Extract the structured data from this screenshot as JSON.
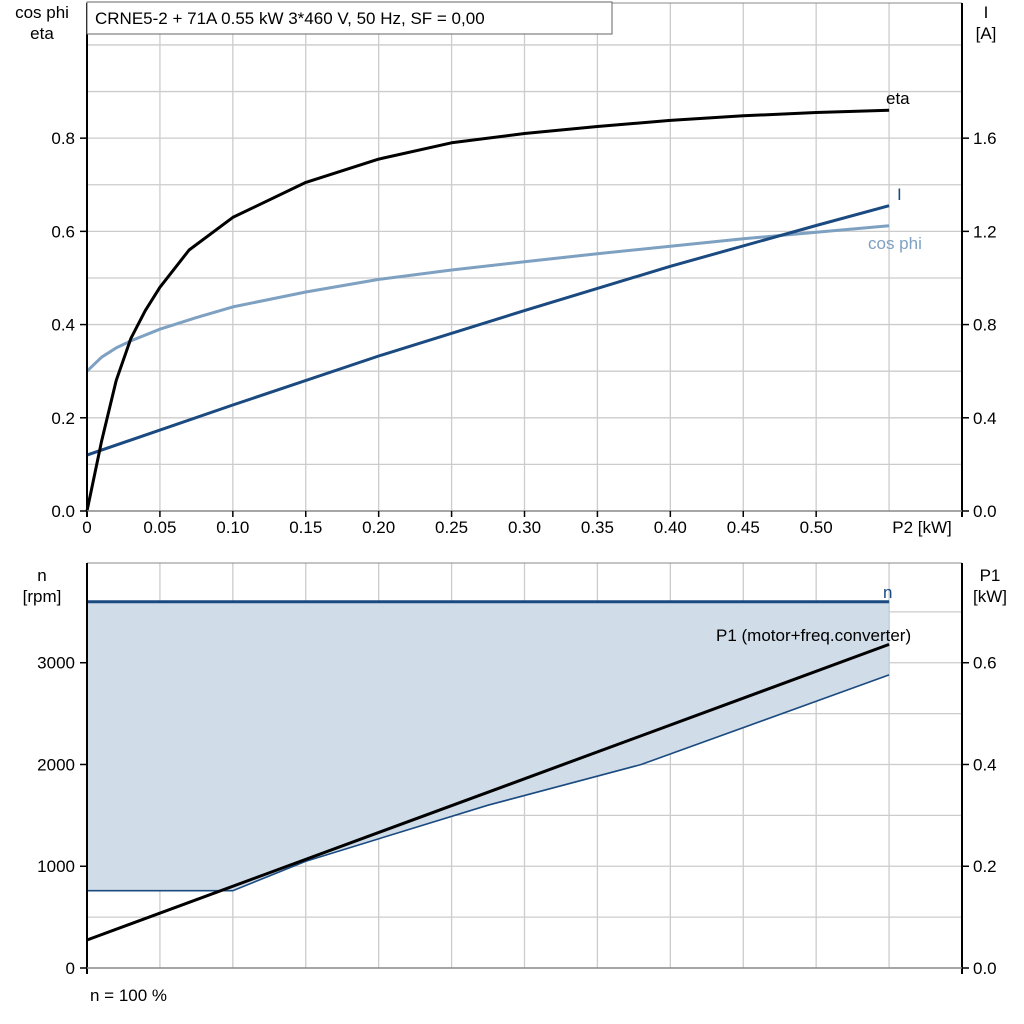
{
  "title": "CRNE5-2 + 71A   0.55 kW   3*460 V, 50 Hz, SF = 0,00",
  "footnote": "n = 100 %",
  "colors": {
    "eta": "#000000",
    "I": "#1a4a80",
    "cos_phi": "#7ea1c2",
    "n": "#1a4a80",
    "P1": "#000000",
    "fill": "#d0dce8",
    "grid": "#cccccc"
  },
  "chart_data": [
    {
      "type": "line",
      "ylabel_left": [
        "cos phi",
        "eta"
      ],
      "ylabel_right": [
        "I",
        "[A]"
      ],
      "xlabel": "P2 [kW]",
      "xlim": [
        0,
        0.6
      ],
      "ylim_left": [
        0,
        1.09
      ],
      "ylim_right": [
        0,
        2.18
      ],
      "x_ticks": [
        "0",
        "0.05",
        "0.10",
        "0.15",
        "0.20",
        "0.25",
        "0.30",
        "0.35",
        "0.40",
        "0.45",
        "0.50"
      ],
      "y_ticks_left": [
        "0.0",
        "0.2",
        "0.4",
        "0.6",
        "0.8"
      ],
      "y_ticks_right": [
        "0.0",
        "0.4",
        "0.8",
        "1.2",
        "1.6"
      ],
      "grid": true,
      "series": [
        {
          "name": "eta",
          "axis": "left",
          "x": [
            0,
            0.01,
            0.02,
            0.03,
            0.04,
            0.05,
            0.07,
            0.1,
            0.15,
            0.2,
            0.25,
            0.3,
            0.35,
            0.4,
            0.45,
            0.5,
            0.55
          ],
          "y": [
            0,
            0.15,
            0.28,
            0.37,
            0.43,
            0.48,
            0.56,
            0.63,
            0.705,
            0.755,
            0.79,
            0.81,
            0.825,
            0.838,
            0.848,
            0.855,
            0.86
          ]
        },
        {
          "name": "I",
          "axis": "right",
          "x": [
            0,
            0.1,
            0.2,
            0.3,
            0.4,
            0.5,
            0.55
          ],
          "y": [
            0.24,
            0.455,
            0.665,
            0.86,
            1.05,
            1.225,
            1.31
          ]
        },
        {
          "name": "cos phi",
          "axis": "left",
          "x": [
            0,
            0.01,
            0.02,
            0.03,
            0.05,
            0.075,
            0.1,
            0.15,
            0.2,
            0.25,
            0.3,
            0.35,
            0.4,
            0.45,
            0.5,
            0.55
          ],
          "y": [
            0.3,
            0.33,
            0.35,
            0.365,
            0.39,
            0.415,
            0.438,
            0.47,
            0.497,
            0.517,
            0.535,
            0.552,
            0.568,
            0.584,
            0.598,
            0.612
          ]
        }
      ]
    },
    {
      "type": "area",
      "ylabel_left": [
        "n",
        "[rpm]"
      ],
      "ylabel_right": [
        "P1",
        "[kW]"
      ],
      "xlim": [
        0,
        0.6
      ],
      "ylim_left": [
        0,
        3980
      ],
      "ylim_right": [
        0,
        0.796
      ],
      "y_ticks_left": [
        "0",
        "1000",
        "2000",
        "3000"
      ],
      "y_ticks_right": [
        "0.0",
        "0.2",
        "0.4",
        "0.6"
      ],
      "grid": true,
      "series": [
        {
          "name": "n",
          "axis": "left",
          "x": [
            0,
            0.55
          ],
          "y": [
            3600,
            3600
          ]
        },
        {
          "axis": "left",
          "role": "n lower bound",
          "x": [
            0,
            0.1,
            0.15,
            0.275,
            0.38,
            0.55
          ],
          "y": [
            760,
            760,
            1050,
            1600,
            2000,
            2880
          ]
        },
        {
          "name": "P1 (motor+freq.converter)",
          "axis": "right",
          "x": [
            0,
            0.55
          ],
          "y": [
            0.055,
            0.636
          ]
        }
      ]
    }
  ]
}
